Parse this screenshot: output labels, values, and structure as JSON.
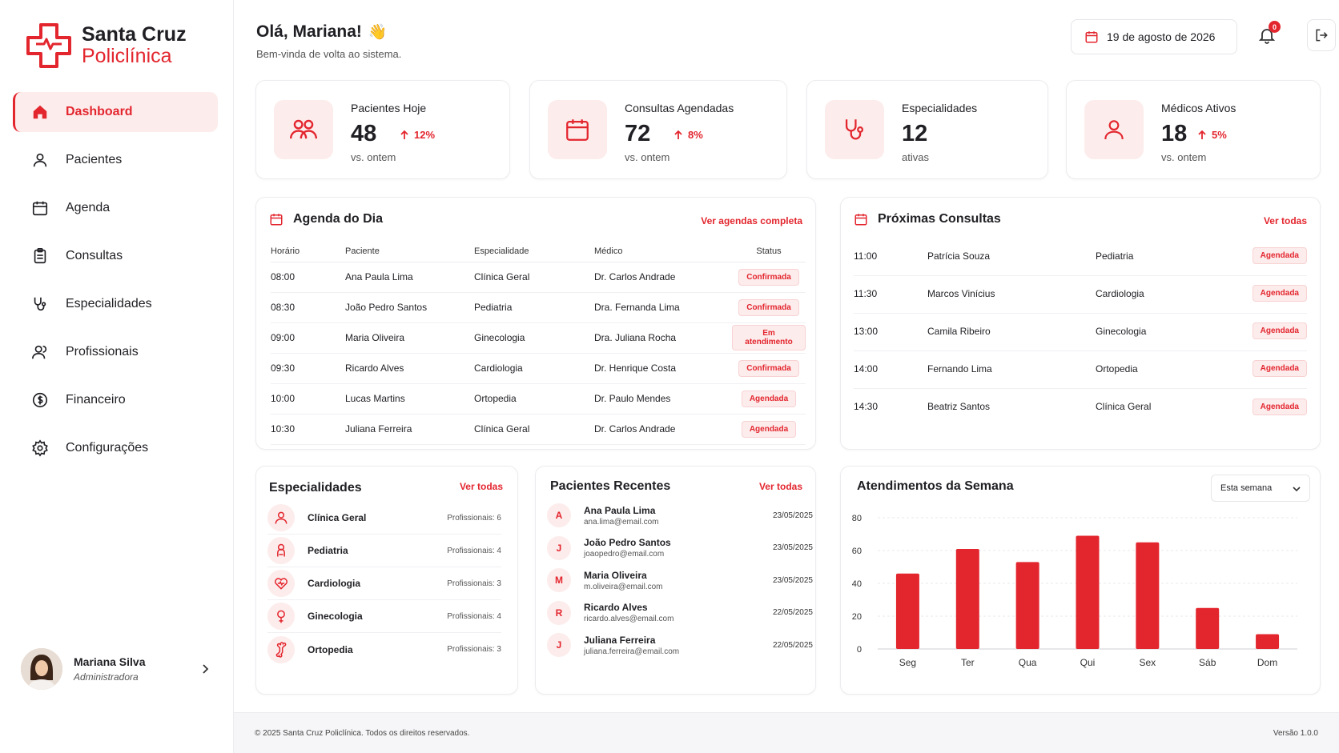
{
  "brand": {
    "line1": "Santa Cruz",
    "line2": "Policlínica"
  },
  "nav": [
    {
      "label": "Dashboard",
      "icon": "home-icon",
      "active": true
    },
    {
      "label": "Pacientes",
      "icon": "user-icon"
    },
    {
      "label": "Agenda",
      "icon": "calendar-icon"
    },
    {
      "label": "Consultas",
      "icon": "clipboard-icon"
    },
    {
      "label": "Especialidades",
      "icon": "stethoscope-icon"
    },
    {
      "label": "Profissionais",
      "icon": "users-icon"
    },
    {
      "label": "Financeiro",
      "icon": "dollar-icon"
    },
    {
      "label": "Configurações",
      "icon": "gear-icon"
    }
  ],
  "user": {
    "name": "Mariana Silva",
    "role": "Administradora"
  },
  "header": {
    "greeting": "Olá, Mariana!",
    "emoji": "👋",
    "subtitle": "Bem-vinda de volta ao sistema.",
    "date": "19 de agosto de 2026",
    "notifications": "0"
  },
  "stats": [
    {
      "label": "Pacientes Hoje",
      "value": "48",
      "trend": "12%",
      "sub": "vs. ontem"
    },
    {
      "label": "Consultas Agendadas",
      "value": "72",
      "trend": "8%",
      "sub": "vs. ontem"
    },
    {
      "label": "Especialidades",
      "value": "12",
      "trend": "",
      "sub": "ativas"
    },
    {
      "label": "Médicos Ativos",
      "value": "18",
      "trend": "5%",
      "sub": "vs. ontem"
    }
  ],
  "agenda": {
    "title": "Agenda do Dia",
    "link": "Ver agendas completa",
    "headers": [
      "Horário",
      "Paciente",
      "Especialidade",
      "Médico",
      "Status"
    ],
    "rows": [
      [
        "08:00",
        "Ana Paula Lima",
        "Clínica Geral",
        "Dr. Carlos Andrade",
        "Confirmada"
      ],
      [
        "08:30",
        "João Pedro Santos",
        "Pediatria",
        "Dra. Fernanda Lima",
        "Confirmada"
      ],
      [
        "09:00",
        "Maria Oliveira",
        "Ginecologia",
        "Dra. Juliana Rocha",
        "Em atendimento"
      ],
      [
        "09:30",
        "Ricardo Alves",
        "Cardiologia",
        "Dr. Henrique Costa",
        "Confirmada"
      ],
      [
        "10:00",
        "Lucas Martins",
        "Ortopedia",
        "Dr. Paulo Mendes",
        "Agendada"
      ],
      [
        "10:30",
        "Juliana Ferreira",
        "Clínica Geral",
        "Dr. Carlos Andrade",
        "Agendada"
      ]
    ]
  },
  "proximas": {
    "title": "Próximas Consultas",
    "link": "Ver todas",
    "rows": [
      [
        "11:00",
        "Patrícia Souza",
        "Pediatria",
        "Agendada"
      ],
      [
        "11:30",
        "Marcos Vinícius",
        "Cardiologia",
        "Agendada"
      ],
      [
        "13:00",
        "Camila Ribeiro",
        "Ginecologia",
        "Agendada"
      ],
      [
        "14:00",
        "Fernando Lima",
        "Ortopedia",
        "Agendada"
      ],
      [
        "14:30",
        "Beatriz Santos",
        "Clínica Geral",
        "Agendada"
      ]
    ]
  },
  "especialidades": {
    "title": "Especialidades",
    "link": "Ver todas",
    "items": [
      {
        "name": "Clínica Geral",
        "prof": "Profissionais: 6",
        "icon": "person-icon"
      },
      {
        "name": "Pediatria",
        "prof": "Profissionais: 4",
        "icon": "baby-icon"
      },
      {
        "name": "Cardiologia",
        "prof": "Profissionais: 3",
        "icon": "heart-icon"
      },
      {
        "name": "Ginecologia",
        "prof": "Profissionais: 4",
        "icon": "female-icon"
      },
      {
        "name": "Ortopedia",
        "prof": "Profissionais: 3",
        "icon": "bone-icon"
      }
    ]
  },
  "pacientes": {
    "title": "Pacientes Recentes",
    "link": "Ver todas",
    "items": [
      {
        "initial": "A",
        "name": "Ana Paula Lima",
        "email": "ana.lima@email.com",
        "date": "23/05/2025"
      },
      {
        "initial": "J",
        "name": "João Pedro Santos",
        "email": "joaopedro@email.com",
        "date": "23/05/2025"
      },
      {
        "initial": "M",
        "name": "Maria Oliveira",
        "email": "m.oliveira@email.com",
        "date": "23/05/2025"
      },
      {
        "initial": "R",
        "name": "Ricardo Alves",
        "email": "ricardo.alves@email.com",
        "date": "22/05/2025"
      },
      {
        "initial": "J",
        "name": "Juliana Ferreira",
        "email": "juliana.ferreira@email.com",
        "date": "22/05/2025"
      }
    ]
  },
  "atendimentos": {
    "title": "Atendimentos da Semana",
    "select": "Esta semana"
  },
  "chart_data": {
    "type": "bar",
    "categories": [
      "Seg",
      "Ter",
      "Qua",
      "Qui",
      "Sex",
      "Sáb",
      "Dom"
    ],
    "values": [
      46,
      61,
      53,
      69,
      65,
      25,
      9
    ],
    "yticks": [
      0,
      20,
      40,
      60,
      80
    ],
    "ylim": [
      0,
      80
    ],
    "grid": true,
    "color": "#e3262e",
    "title": "Atendimentos da Semana"
  },
  "footer": {
    "left": "© 2025 Santa Cruz Policlínica. Todos os direitos reservados.",
    "right": "Versão 1.0.0"
  },
  "colors": {
    "accent": "#e3262e",
    "accent_soft": "#fdecec"
  }
}
